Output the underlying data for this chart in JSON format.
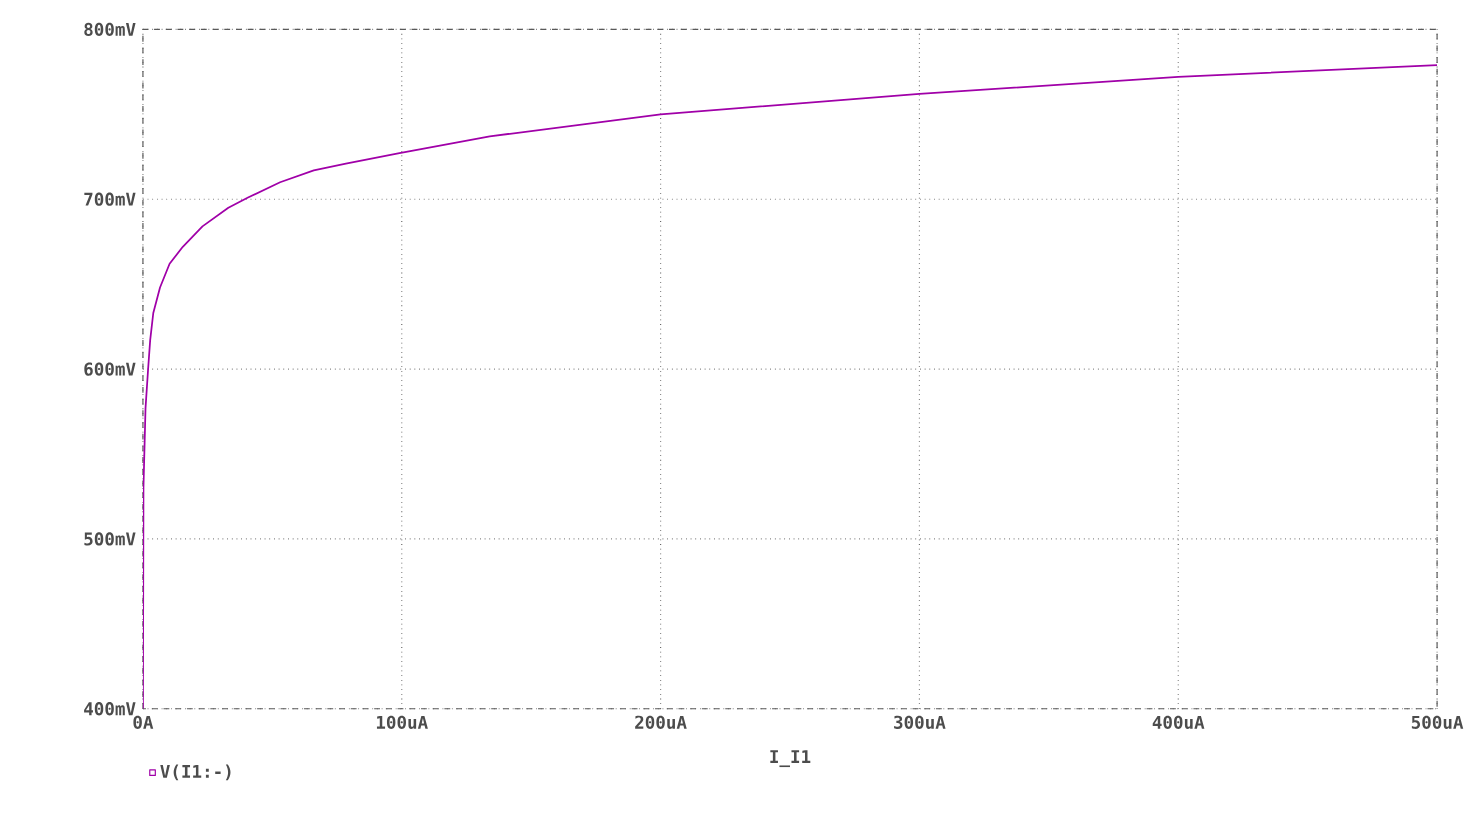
{
  "chart_data": {
    "type": "line",
    "xlabel": "I_I1",
    "x": [
      0,
      0.2,
      1,
      2,
      2.8,
      4,
      6.6,
      10.3,
      15.4,
      23,
      33,
      40.6,
      53,
      66,
      78.4,
      98.6,
      134,
      200,
      300,
      400,
      500
    ],
    "series": [
      {
        "name": "V(I1:-)",
        "color": "#a000a8",
        "values": [
          400,
          530,
          577,
          600,
          617,
          633,
          648,
          662,
          672,
          684,
          695,
          701,
          710,
          717,
          721,
          727,
          737,
          750,
          762,
          772,
          779
        ]
      }
    ],
    "xlim": [
      0,
      500
    ],
    "ylim": [
      400,
      800
    ],
    "xticks": [
      {
        "value": 0,
        "label": "0A"
      },
      {
        "value": 100,
        "label": "100uA"
      },
      {
        "value": 200,
        "label": "200uA"
      },
      {
        "value": 300,
        "label": "300uA"
      },
      {
        "value": 400,
        "label": "400uA"
      },
      {
        "value": 500,
        "label": "500uA"
      }
    ],
    "yticks": [
      {
        "value": 400,
        "label": "400mV"
      },
      {
        "value": 500,
        "label": "500mV"
      },
      {
        "value": 600,
        "label": "600mV"
      },
      {
        "value": 700,
        "label": "700mV"
      },
      {
        "value": 800,
        "label": "800mV"
      }
    ],
    "grid": true,
    "legend": "bottom left",
    "marker": "none",
    "line_style": "solid"
  }
}
